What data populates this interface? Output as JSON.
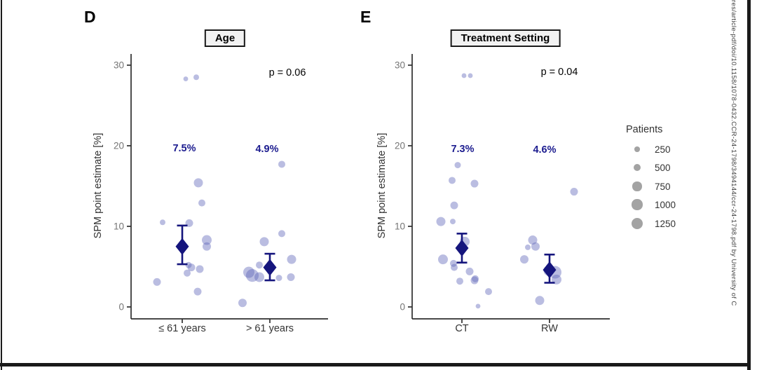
{
  "watermark": "res/article-pdf/doi/10.1158/1078-0432.CCR-24-1798/3494144/ccr-24-1798.pdf by University of C",
  "legend": {
    "title": "Patients",
    "entries": [
      250,
      500,
      750,
      1000,
      1250
    ]
  },
  "colors": {
    "point_fill": "#5a61b8",
    "mean_navy": "#15157d",
    "axis": "#2e2e2e",
    "tick_label": "#757575",
    "legend_circle": "#a3a3a3",
    "annotation_blue": "#1c1c8f"
  },
  "chart_data": [
    {
      "type": "scatter",
      "panel_label": "D",
      "title": "Age",
      "p_value": "p = 0.06",
      "ylabel": "SPM point estimate [%]",
      "yticks": [
        0,
        10,
        20,
        30
      ],
      "ylim": [
        -1.5,
        31.5
      ],
      "legend_position": "right",
      "grid": false,
      "groups": [
        {
          "category": "≤ 61 years",
          "mean_label": "7.5%",
          "mean": 7.5,
          "ci": [
            5.3,
            10.1
          ],
          "points": [
            {
              "value": 28.3,
              "patients": 200,
              "dx": 5
            },
            {
              "value": 28.5,
              "patients": 280,
              "dx": 20
            },
            {
              "value": 15.4,
              "patients": 730,
              "dx": 23
            },
            {
              "value": 12.9,
              "patients": 430,
              "dx": 28
            },
            {
              "value": 10.5,
              "patients": 280,
              "dx": -28
            },
            {
              "value": 10.4,
              "patients": 520,
              "dx": 10
            },
            {
              "value": 8.3,
              "patients": 850,
              "dx": 35
            },
            {
              "value": 7.5,
              "patients": 625,
              "dx": 35
            },
            {
              "value": 5.2,
              "patients": 350,
              "dx": 9
            },
            {
              "value": 4.9,
              "patients": 520,
              "dx": 13
            },
            {
              "value": 4.7,
              "patients": 520,
              "dx": 25
            },
            {
              "value": 4.2,
              "patients": 430,
              "dx": 7
            },
            {
              "value": 3.1,
              "patients": 520,
              "dx": -36
            },
            {
              "value": 1.9,
              "patients": 520,
              "dx": 22
            }
          ]
        },
        {
          "category": "> 61 years",
          "mean_label": "4.9%",
          "mean": 4.9,
          "ci": [
            3.3,
            6.6
          ],
          "points": [
            {
              "value": 17.7,
              "patients": 430,
              "dx": 17
            },
            {
              "value": 9.1,
              "patients": 430,
              "dx": 17
            },
            {
              "value": 8.1,
              "patients": 730,
              "dx": -8
            },
            {
              "value": 5.9,
              "patients": 730,
              "dx": 31
            },
            {
              "value": 5.2,
              "patients": 430,
              "dx": -15
            },
            {
              "value": 4.3,
              "patients": 1100,
              "dx": -30
            },
            {
              "value": 3.9,
              "patients": 1450,
              "dx": -25
            },
            {
              "value": 3.7,
              "patients": 850,
              "dx": -15
            },
            {
              "value": 3.7,
              "patients": 520,
              "dx": 30
            },
            {
              "value": 3.6,
              "patients": 350,
              "dx": 13
            },
            {
              "value": 0.5,
              "patients": 625,
              "dx": -39
            }
          ]
        }
      ]
    },
    {
      "type": "scatter",
      "panel_label": "E",
      "title": "Treatment Setting",
      "p_value": "p = 0.04",
      "ylabel": "SPM point estimate [%]",
      "yticks": [
        0,
        10,
        20,
        30
      ],
      "ylim": [
        -1.5,
        31.5
      ],
      "legend_position": "right",
      "grid": false,
      "groups": [
        {
          "category": "CT",
          "mean_label": "7.3%",
          "mean": 7.3,
          "ci": [
            5.5,
            9.1
          ],
          "points": [
            {
              "value": 28.7,
              "patients": 200,
              "dx": 3
            },
            {
              "value": 28.7,
              "patients": 200,
              "dx": 12
            },
            {
              "value": 17.6,
              "patients": 350,
              "dx": -6
            },
            {
              "value": 15.7,
              "patients": 430,
              "dx": -14
            },
            {
              "value": 15.3,
              "patients": 520,
              "dx": 18
            },
            {
              "value": 12.6,
              "patients": 520,
              "dx": -11
            },
            {
              "value": 10.6,
              "patients": 730,
              "dx": -30
            },
            {
              "value": 10.6,
              "patients": 280,
              "dx": -13
            },
            {
              "value": 8.1,
              "patients": 850,
              "dx": 4
            },
            {
              "value": 5.9,
              "patients": 850,
              "dx": -27
            },
            {
              "value": 5.4,
              "patients": 430,
              "dx": -12
            },
            {
              "value": 4.9,
              "patients": 430,
              "dx": -11
            },
            {
              "value": 4.4,
              "patients": 520,
              "dx": 11
            },
            {
              "value": 3.5,
              "patients": 430,
              "dx": 19
            },
            {
              "value": 3.3,
              "patients": 520,
              "dx": 18
            },
            {
              "value": 3.2,
              "patients": 430,
              "dx": -3
            },
            {
              "value": 1.9,
              "patients": 430,
              "dx": 38
            },
            {
              "value": 0.1,
              "patients": 200,
              "dx": 23
            }
          ]
        },
        {
          "category": "RW",
          "mean_label": "4.6%",
          "mean": 4.6,
          "ci": [
            3.0,
            6.5
          ],
          "points": [
            {
              "value": 14.3,
              "patients": 520,
              "dx": 35
            },
            {
              "value": 8.3,
              "patients": 730,
              "dx": -24
            },
            {
              "value": 7.5,
              "patients": 625,
              "dx": -20
            },
            {
              "value": 7.4,
              "patients": 280,
              "dx": -31
            },
            {
              "value": 5.9,
              "patients": 625,
              "dx": -36
            },
            {
              "value": 4.5,
              "patients": 980,
              "dx": -1
            },
            {
              "value": 4.3,
              "patients": 1400,
              "dx": 8
            },
            {
              "value": 3.4,
              "patients": 850,
              "dx": 10
            },
            {
              "value": 0.8,
              "patients": 730,
              "dx": -14
            }
          ]
        }
      ]
    }
  ]
}
